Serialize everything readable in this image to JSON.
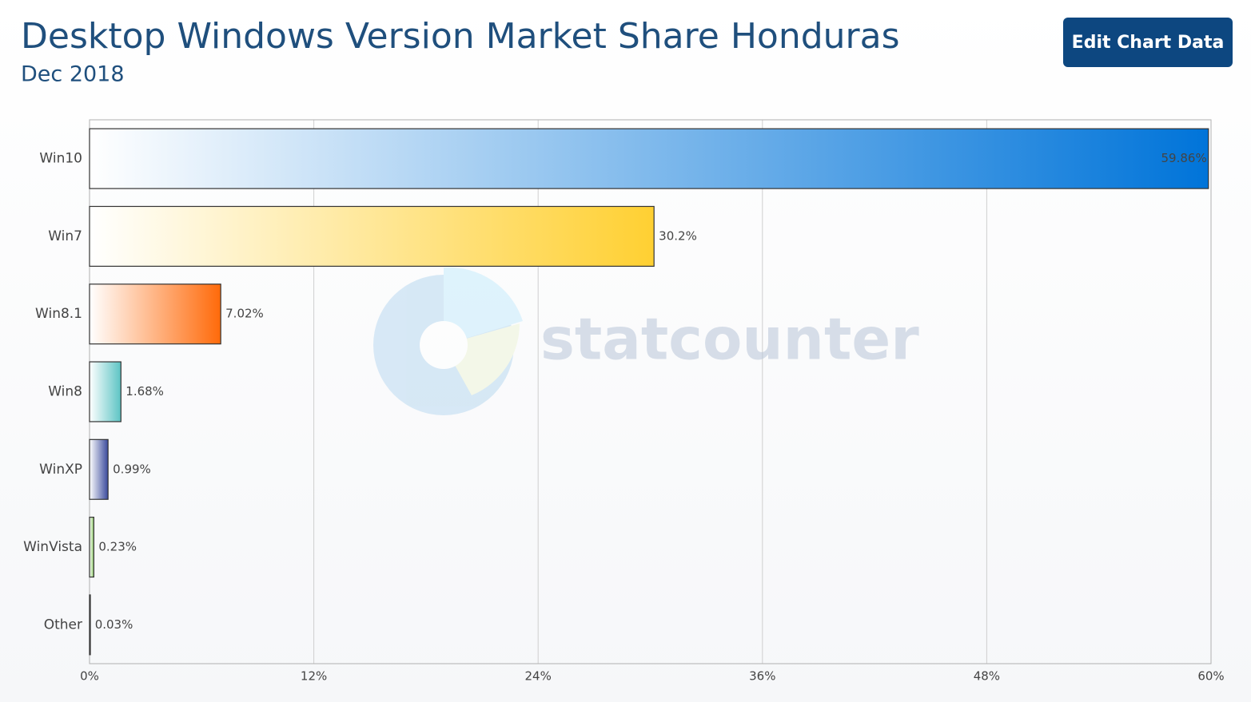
{
  "header": {
    "button": "Edit Chart Data"
  },
  "watermark": "statcounter",
  "chart_data": {
    "type": "bar",
    "orientation": "horizontal",
    "title": "Desktop Windows Version Market Share Honduras",
    "subtitle": "Dec 2018",
    "categories": [
      "Win10",
      "Win7",
      "Win8.1",
      "Win8",
      "WinXP",
      "WinVista",
      "Other"
    ],
    "values": [
      59.86,
      30.2,
      7.02,
      1.68,
      0.99,
      0.23,
      0.03
    ],
    "value_labels": [
      "59.86%",
      "30.2%",
      "7.02%",
      "1.68%",
      "0.99%",
      "0.23%",
      "0.03%"
    ],
    "colors": [
      "#0074d9",
      "#ffd032",
      "#ff6a0a",
      "#5cc4c4",
      "#3a4a9c",
      "#8cc866",
      "#333333"
    ],
    "xlim": [
      0,
      60
    ],
    "xticks": [
      {
        "value": 0,
        "label": "0%"
      },
      {
        "value": 12,
        "label": "12%"
      },
      {
        "value": 24,
        "label": "24%"
      },
      {
        "value": 36,
        "label": "36%"
      },
      {
        "value": 48,
        "label": "48%"
      },
      {
        "value": 60,
        "label": "60%"
      }
    ],
    "grid": true
  }
}
